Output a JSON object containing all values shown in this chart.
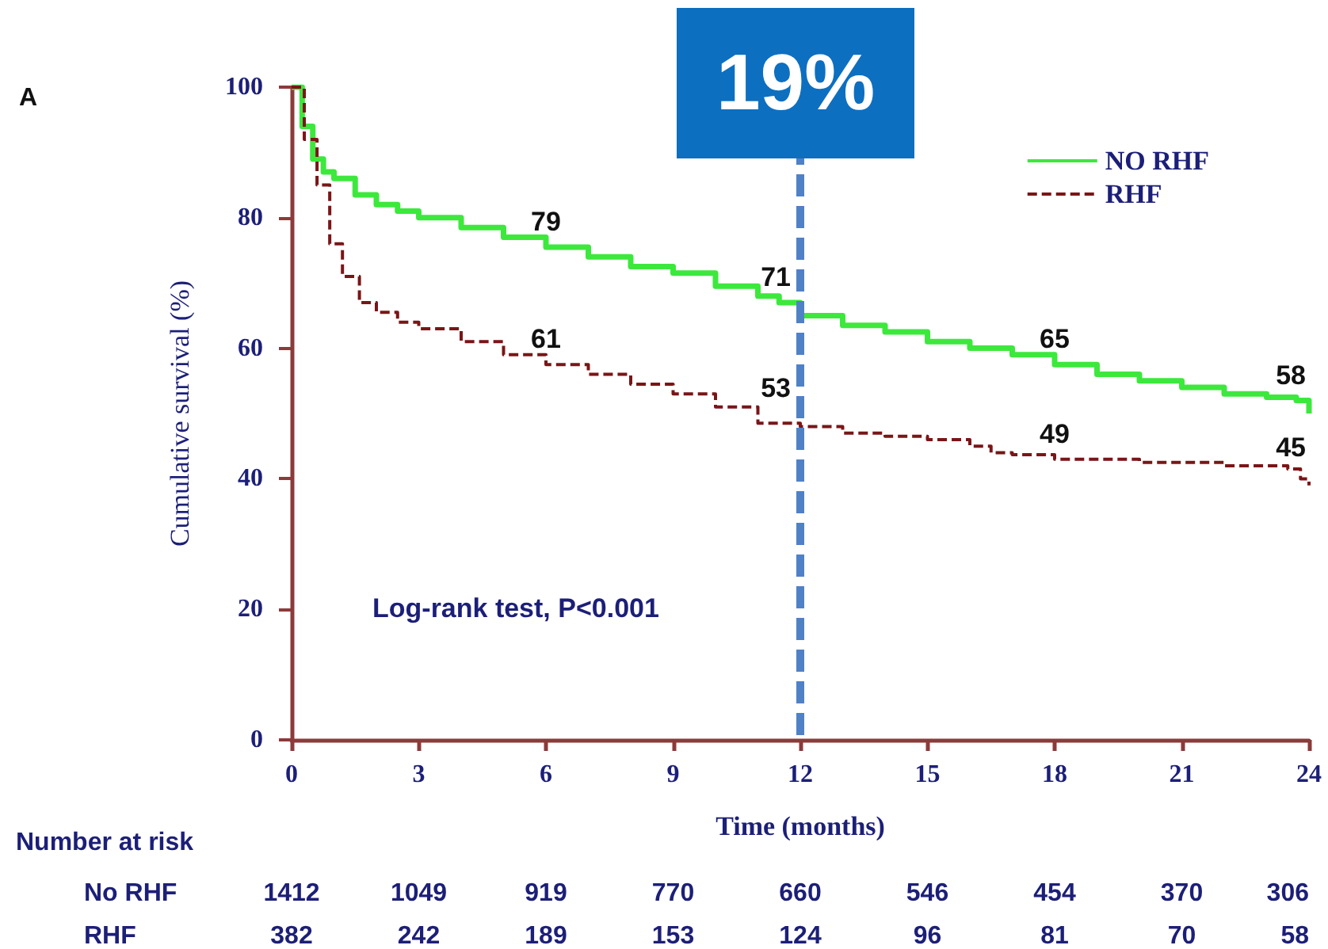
{
  "chart_data": {
    "type": "step",
    "xlabel": "Time (months)",
    "ylabel": "Cumulative survival (%)",
    "xlim": [
      0,
      24
    ],
    "xticks": [
      0,
      3,
      6,
      9,
      12,
      15,
      18,
      21,
      24
    ],
    "ylim": [
      0,
      100
    ],
    "yticks": [
      0,
      20,
      40,
      60,
      80,
      100
    ],
    "grid": false,
    "legend": "top right",
    "marker": "none",
    "series": [
      {
        "name": "NO RHF",
        "color": "#3de83d",
        "line_style": "solid",
        "x": [
          0,
          0.25,
          0.5,
          0.75,
          1,
          1.5,
          2,
          2.5,
          3,
          4,
          5,
          6,
          7,
          8,
          9,
          10,
          11,
          11.5,
          12,
          13,
          14,
          15,
          16,
          17,
          18,
          19,
          20,
          21,
          22,
          23,
          23.7,
          24
        ],
        "values": [
          100,
          94,
          89,
          87,
          86,
          83.5,
          82,
          81,
          80,
          78.5,
          77,
          75.5,
          74,
          72.5,
          71.5,
          69.5,
          68,
          67,
          65,
          63.5,
          62.5,
          61,
          60,
          59,
          57.5,
          56,
          55,
          54,
          53,
          52.5,
          52,
          50
        ]
      },
      {
        "name": "RHF",
        "color": "#7a1517",
        "line_style": "dashed",
        "x": [
          0,
          0.3,
          0.6,
          0.9,
          1.2,
          1.6,
          2,
          2.5,
          3,
          4,
          5,
          6,
          7,
          8,
          9,
          10,
          11,
          12,
          13,
          14,
          15,
          16,
          16.5,
          17,
          18,
          20,
          22,
          23.5,
          23.8,
          24
        ],
        "values": [
          100,
          92,
          85,
          76,
          71,
          67,
          65.5,
          64,
          63,
          61,
          59,
          57.5,
          56,
          54.5,
          53,
          51,
          48.5,
          48,
          47,
          46.5,
          46,
          45,
          44,
          43.7,
          43,
          42.5,
          42,
          41.5,
          40,
          39
        ]
      }
    ],
    "ref_lines": [
      {
        "axis": "x",
        "value": 12,
        "color": "#4f81c7",
        "line_style": "dashed"
      }
    ],
    "annotations": [
      {
        "text": "79",
        "x": 6,
        "y": 75.5
      },
      {
        "text": "71",
        "x": 12,
        "y": 65
      },
      {
        "text": "65",
        "x": 18,
        "y": 57.5
      },
      {
        "text": "58",
        "x": 24,
        "y": 50
      },
      {
        "text": "61",
        "x": 6,
        "y": 57.5
      },
      {
        "text": "53",
        "x": 12,
        "y": 48
      },
      {
        "text": "49",
        "x": 18,
        "y": 43
      },
      {
        "text": "45",
        "x": 24,
        "y": 39
      },
      "A",
      "Log-rank test, P<0.001",
      "19%",
      "Number at risk",
      "No RHF",
      "1412",
      "1049",
      "919",
      "770",
      "660",
      "546",
      "454",
      "370",
      "306",
      "RHF",
      "382",
      "242",
      "189",
      "153",
      "124",
      "96",
      "81",
      "70",
      "58"
    ]
  }
}
